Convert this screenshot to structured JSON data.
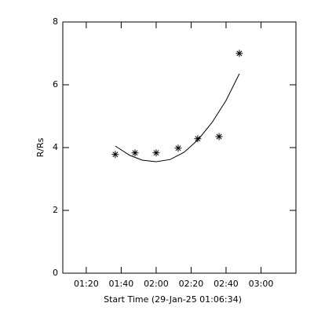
{
  "chart_data": {
    "type": "scatter",
    "xlabel": "Start Time (29-Jan-25 01:06:34)",
    "ylabel": "R/Rs",
    "xlim": [
      66.57,
      200
    ],
    "xticks": [
      {
        "value": 80,
        "label": "01:20"
      },
      {
        "value": 100,
        "label": "01:40"
      },
      {
        "value": 120,
        "label": "02:00"
      },
      {
        "value": 140,
        "label": "02:20"
      },
      {
        "value": 160,
        "label": "02:40"
      },
      {
        "value": 180,
        "label": "03:00"
      }
    ],
    "ylim": [
      0,
      8
    ],
    "yticks": [
      0,
      2,
      4,
      6,
      8
    ],
    "color": "#000000",
    "series": [
      {
        "type": "scatter",
        "x": [
          96.6,
          107.9,
          120,
          132.6,
          143.8,
          156,
          167.6
        ],
        "values": [
          3.78,
          3.83,
          3.83,
          3.98,
          4.28,
          4.35,
          7.0
        ]
      },
      {
        "type": "line",
        "x": [
          96.6,
          105,
          112,
          120,
          128,
          136,
          144,
          152,
          160,
          167.6
        ],
        "values": [
          4.05,
          3.75,
          3.6,
          3.55,
          3.62,
          3.85,
          4.25,
          4.8,
          5.5,
          6.35
        ]
      }
    ]
  }
}
